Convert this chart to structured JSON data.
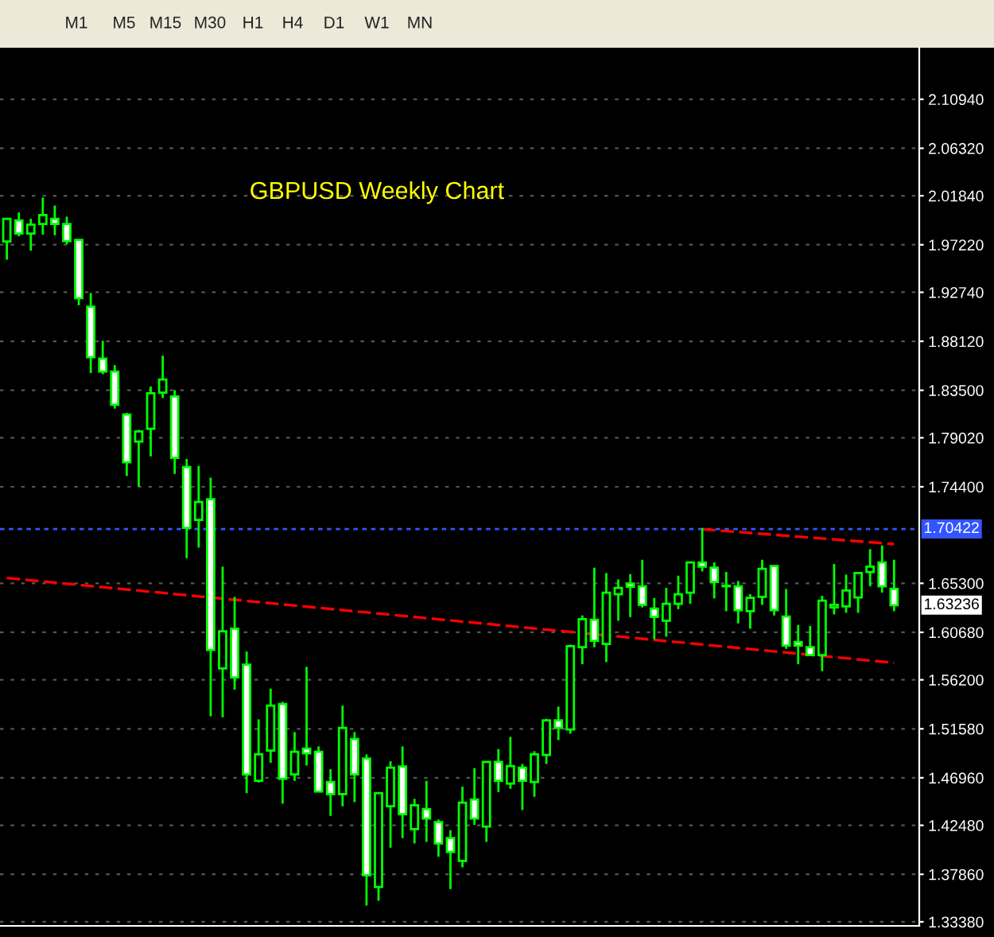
{
  "chart_data": {
    "type": "candlestick",
    "title": "GBPUSD Weekly Chart",
    "color": "#00ff00",
    "categories": [
      null,
      null,
      null,
      null,
      null,
      null,
      null,
      null,
      null,
      null,
      null,
      null,
      null,
      null,
      null,
      null,
      null,
      null,
      null,
      null,
      null,
      null,
      null,
      null,
      null,
      null,
      null,
      null,
      null,
      null,
      null,
      null,
      null,
      null,
      null,
      null,
      null,
      null,
      null,
      null,
      null,
      null,
      null,
      null,
      null,
      null,
      null,
      null,
      null,
      null,
      null,
      null,
      null,
      null,
      null,
      null,
      null,
      null,
      null,
      null,
      null,
      null,
      null,
      null,
      null,
      null,
      null,
      null,
      null,
      null,
      null,
      null,
      null,
      null,
      null
    ],
    "ohlc": [
      [
        1.9752,
        1.9972,
        1.9582,
        1.9967
      ],
      [
        1.9952,
        2.0027,
        1.9802,
        1.9827
      ],
      [
        1.9827,
        1.9967,
        1.9667,
        1.9912
      ],
      [
        1.9917,
        2.0167,
        1.9818,
        2.0002
      ],
      [
        1.9967,
        2.0092,
        1.9812,
        1.9917
      ],
      [
        1.9917,
        1.9987,
        1.9727,
        1.9757
      ],
      [
        1.9767,
        1.977,
        1.9152,
        1.9218
      ],
      [
        1.9137,
        1.9267,
        1.8512,
        1.8662
      ],
      [
        1.8648,
        1.8817,
        1.8502,
        1.8527
      ],
      [
        1.8527,
        1.8587,
        1.8177,
        1.8213
      ],
      [
        1.8122,
        1.8137,
        1.7542,
        1.7672
      ],
      [
        1.7867,
        1.7977,
        1.7442,
        1.7962
      ],
      [
        1.7987,
        1.8386,
        1.7727,
        1.8322
      ],
      [
        1.8327,
        1.8677,
        1.8277,
        1.8452
      ],
      [
        1.8292,
        1.8352,
        1.7562,
        1.7712
      ],
      [
        1.7627,
        1.7702,
        1.6767,
        1.7052
      ],
      [
        1.7127,
        1.7637,
        1.6867,
        1.7297
      ],
      [
        1.7322,
        1.7527,
        1.5277,
        1.5902
      ],
      [
        1.5727,
        1.6687,
        1.5267,
        1.6077
      ],
      [
        1.6102,
        1.6402,
        1.5527,
        1.5642
      ],
      [
        1.5762,
        1.5887,
        1.4552,
        1.4727
      ],
      [
        1.4667,
        1.5247,
        1.4652,
        1.4917
      ],
      [
        1.4952,
        1.5537,
        1.4838,
        1.5377
      ],
      [
        1.5392,
        1.5412,
        1.4452,
        1.4687
      ],
      [
        1.4727,
        1.5127,
        1.4667,
        1.4942
      ],
      [
        1.4972,
        1.5742,
        1.4812,
        1.4927
      ],
      [
        1.4942,
        1.4992,
        1.4562,
        1.4567
      ],
      [
        1.4657,
        1.4777,
        1.4337,
        1.4542
      ],
      [
        1.4542,
        1.5377,
        1.4427,
        1.5167
      ],
      [
        1.5062,
        1.5127,
        1.4467,
        1.4727
      ],
      [
        1.4877,
        1.4917,
        1.3492,
        1.3777
      ],
      [
        1.3667,
        1.4552,
        1.3537,
        1.4552
      ],
      [
        1.4427,
        1.4852,
        1.4037,
        1.4792
      ],
      [
        1.4802,
        1.4992,
        1.4127,
        1.4352
      ],
      [
        1.4212,
        1.4497,
        1.4077,
        1.4437
      ],
      [
        1.4402,
        1.4667,
        1.4092,
        1.4312
      ],
      [
        1.4277,
        1.4302,
        1.3952,
        1.4077
      ],
      [
        1.4127,
        1.4202,
        1.3647,
        1.3997
      ],
      [
        1.3912,
        1.4612,
        1.3852,
        1.4462
      ],
      [
        1.4492,
        1.4787,
        1.4252,
        1.4312
      ],
      [
        1.4237,
        1.4846,
        1.4092,
        1.4846
      ],
      [
        1.4846,
        1.4967,
        1.4562,
        1.4667
      ],
      [
        1.4642,
        1.5082,
        1.4592,
        1.4807
      ],
      [
        1.4792,
        1.4827,
        1.4392,
        1.4667
      ],
      [
        1.4657,
        1.4947,
        1.4517,
        1.4917
      ],
      [
        1.4912,
        1.5252,
        1.4827,
        1.5237
      ],
      [
        1.5237,
        1.5367,
        1.5052,
        1.5167
      ],
      [
        1.5152,
        1.5952,
        1.5112,
        1.5937
      ],
      [
        1.5927,
        1.6227,
        1.5767,
        1.6192
      ],
      [
        1.6187,
        1.6677,
        1.5927,
        1.5987
      ],
      [
        1.5957,
        1.6627,
        1.5787,
        1.6442
      ],
      [
        1.6427,
        1.6567,
        1.6177,
        1.6487
      ],
      [
        1.6527,
        1.6617,
        1.6212,
        1.6497
      ],
      [
        1.6502,
        1.6752,
        1.6302,
        1.6327
      ],
      [
        1.6292,
        1.6392,
        1.6002,
        1.6212
      ],
      [
        1.6177,
        1.6487,
        1.6027,
        1.6337
      ],
      [
        1.6337,
        1.6602,
        1.6287,
        1.6427
      ],
      [
        1.6442,
        1.6737,
        1.6337,
        1.6727
      ],
      [
        1.6727,
        1.7052,
        1.6642,
        1.6687
      ],
      [
        1.6677,
        1.6727,
        1.6387,
        1.6542
      ],
      [
        1.6502,
        1.6637,
        1.6267,
        1.6507
      ],
      [
        1.6502,
        1.6552,
        1.6152,
        1.6277
      ],
      [
        1.6267,
        1.6427,
        1.6102,
        1.6392
      ],
      [
        1.6402,
        1.6752,
        1.6327,
        1.6667
      ],
      [
        1.6692,
        1.6702,
        1.6227,
        1.6277
      ],
      [
        1.6217,
        1.6477,
        1.5912,
        1.5942
      ],
      [
        1.5977,
        1.6137,
        1.5767,
        1.5942
      ],
      [
        1.5927,
        1.6127,
        1.5852,
        1.5852
      ],
      [
        1.5852,
        1.6412,
        1.5702,
        1.6367
      ],
      [
        1.6302,
        1.6712,
        1.6237,
        1.6327
      ],
      [
        1.6312,
        1.6612,
        1.6252,
        1.6462
      ],
      [
        1.6397,
        1.6637,
        1.6252,
        1.6627
      ],
      [
        1.6637,
        1.6852,
        1.6502,
        1.6687
      ],
      [
        1.6727,
        1.6887,
        1.6442,
        1.6502
      ],
      [
        1.6477,
        1.6752,
        1.6267,
        1.6324
      ]
    ],
    "series": [
      {
        "type": "line",
        "values": [
          1.658,
          null,
          null,
          null,
          null,
          null,
          null,
          null,
          null,
          null,
          null,
          null,
          null,
          null,
          null,
          null,
          null,
          null,
          null,
          null,
          null,
          null,
          null,
          null,
          null,
          null,
          null,
          null,
          null,
          null,
          null,
          null,
          null,
          null,
          null,
          null,
          null,
          null,
          null,
          null,
          null,
          null,
          null,
          null,
          null,
          null,
          null,
          null,
          null,
          null,
          null,
          null,
          null,
          null,
          null,
          null,
          null,
          null,
          null,
          null,
          null,
          null,
          null,
          null,
          null,
          null,
          null,
          null,
          null,
          null,
          null,
          null,
          null,
          null,
          1.578
        ],
        "color": "#ff0000",
        "line_style": "dashed"
      },
      {
        "type": "line",
        "values": [
          null,
          null,
          null,
          null,
          null,
          null,
          null,
          null,
          null,
          null,
          null,
          null,
          null,
          null,
          null,
          null,
          null,
          null,
          null,
          null,
          null,
          null,
          null,
          null,
          null,
          null,
          null,
          null,
          null,
          null,
          null,
          null,
          null,
          null,
          null,
          null,
          null,
          null,
          null,
          null,
          null,
          null,
          null,
          null,
          null,
          null,
          null,
          null,
          null,
          null,
          null,
          null,
          null,
          null,
          null,
          null,
          null,
          null,
          1.704,
          null,
          null,
          null,
          null,
          null,
          null,
          null,
          null,
          null,
          null,
          null,
          null,
          null,
          null,
          null,
          1.69
        ],
        "color": "#ff0000",
        "line_style": "dashed"
      }
    ],
    "ylim": [
      1.33,
      2.158
    ],
    "yticks": [
      {
        "value": 1.3338,
        "label": "1.33380"
      },
      {
        "value": 1.3786,
        "label": "1.37860"
      },
      {
        "value": 1.4248,
        "label": "1.42480"
      },
      {
        "value": 1.4696,
        "label": "1.46960"
      },
      {
        "value": 1.5158,
        "label": "1.51580"
      },
      {
        "value": 1.562,
        "label": "1.56200"
      },
      {
        "value": 1.6068,
        "label": "1.60680"
      },
      {
        "value": 1.653,
        "label": "1.65300"
      },
      {
        "value": 1.744,
        "label": "1.74400"
      },
      {
        "value": 1.7902,
        "label": "1.79020"
      },
      {
        "value": 1.835,
        "label": "1.83500"
      },
      {
        "value": 1.8812,
        "label": "1.88120"
      },
      {
        "value": 1.9274,
        "label": "1.92740"
      },
      {
        "value": 1.9722,
        "label": "1.97220"
      },
      {
        "value": 2.0184,
        "label": "2.01840"
      },
      {
        "value": 2.0632,
        "label": "2.06320"
      },
      {
        "value": 2.1094,
        "label": "2.10940"
      }
    ],
    "ref_lines": [
      {
        "axis": "y",
        "value": 1.70422,
        "label": "1.70422",
        "color": "#3355ff",
        "line_style": "dotted"
      }
    ],
    "grid": "y",
    "annotations": [
      "M1",
      "M5",
      "M15",
      "M30",
      "H1",
      "H4",
      "D1",
      "W1",
      "MN",
      {
        "text": "1.63236",
        "y": 1.63236
      }
    ]
  }
}
